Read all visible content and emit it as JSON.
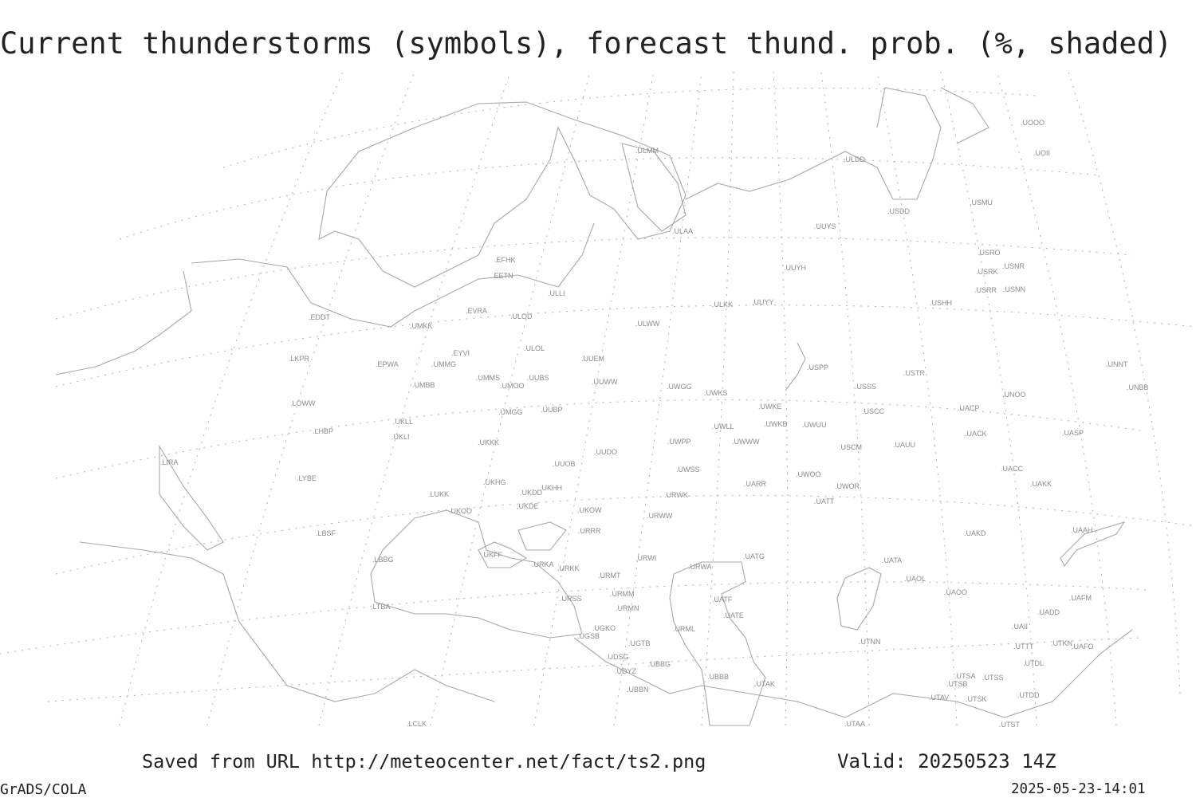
{
  "title": "Current thunderstorms (symbols), forecast thund. prob. (%, shaded)",
  "footer": {
    "source": "Saved from URL http://meteocenter.net/fact/ts2.png",
    "valid": "Valid: 20250523 14Z",
    "software": "GrADS/COLA",
    "timestamp": "2025-05-23-14:01"
  },
  "colors": {
    "coastline": "#a8a8a8",
    "graticule": "#b0b0b0",
    "station_label": "#8a8a8a",
    "text": "#222222"
  },
  "stations": [
    "ULMM",
    "ULDD",
    "UOOO",
    "UOII",
    "USMU",
    "USDD",
    "ULAA",
    "UUYS",
    "USRO",
    "USRK",
    "USNR",
    "USRR",
    "USNN",
    "UUYH",
    "USHH",
    "ULKK",
    "UUYY",
    "ULWW",
    "EFHK",
    "EETN",
    "ULLI",
    "EVRA",
    "ULOD",
    "EDDT",
    "UMKK",
    "ULOL",
    "EYVI",
    "UMMG",
    "LKPR",
    "EPWA",
    "UUEM",
    "UMMS",
    "UUBS",
    "UMOO",
    "UUWW",
    "UMBB",
    "USPP",
    "USTR",
    "UWGG",
    "UWKS",
    "USSS",
    "UNNT",
    "UNBB",
    "UNOO",
    "UMGG",
    "UUBP",
    "UWKE",
    "USCC",
    "UACP",
    "LOWW",
    "UKLL",
    "UWLL",
    "UWKB",
    "UWUU",
    "UKLI",
    "LHBP",
    "UACK",
    "UASP",
    "UKKK",
    "UWPP",
    "UWWW",
    "USCM",
    "UAUU",
    "UUDO",
    "LIRA",
    "UUOB",
    "LYBE",
    "UWSS",
    "UACC",
    "UKHG",
    "UKHH",
    "UWOO",
    "UARR",
    "UWOR",
    "UAKK",
    "LUKK",
    "UKDD",
    "URWK",
    "UKDE",
    "UATT",
    "UKOO",
    "UKOW",
    "URWW",
    "URRR",
    "LBSF",
    "UAKD",
    "UAAH",
    "UKFF",
    "URWI",
    "UATG",
    "URKA",
    "URKK",
    "LBBG",
    "UATA",
    "URMT",
    "URWA",
    "UAOL",
    "URSS",
    "URMM",
    "UATF",
    "UAOO",
    "UAFM",
    "URMN",
    "LTBA",
    "UATE",
    "UADD",
    "UGKO",
    "UGSB",
    "URML",
    "UAII",
    "UTNN",
    "UGTB",
    "UTTT",
    "UTKN",
    "UAFO",
    "UDSG",
    "UBBG",
    "UTDL",
    "UDYZ",
    "UBBB",
    "UTSA",
    "UTSS",
    "UTAK",
    "UBBN",
    "UTSB",
    "UTAV",
    "UTSK",
    "UTDD",
    "LCLK",
    "UTAA",
    "UTST"
  ]
}
